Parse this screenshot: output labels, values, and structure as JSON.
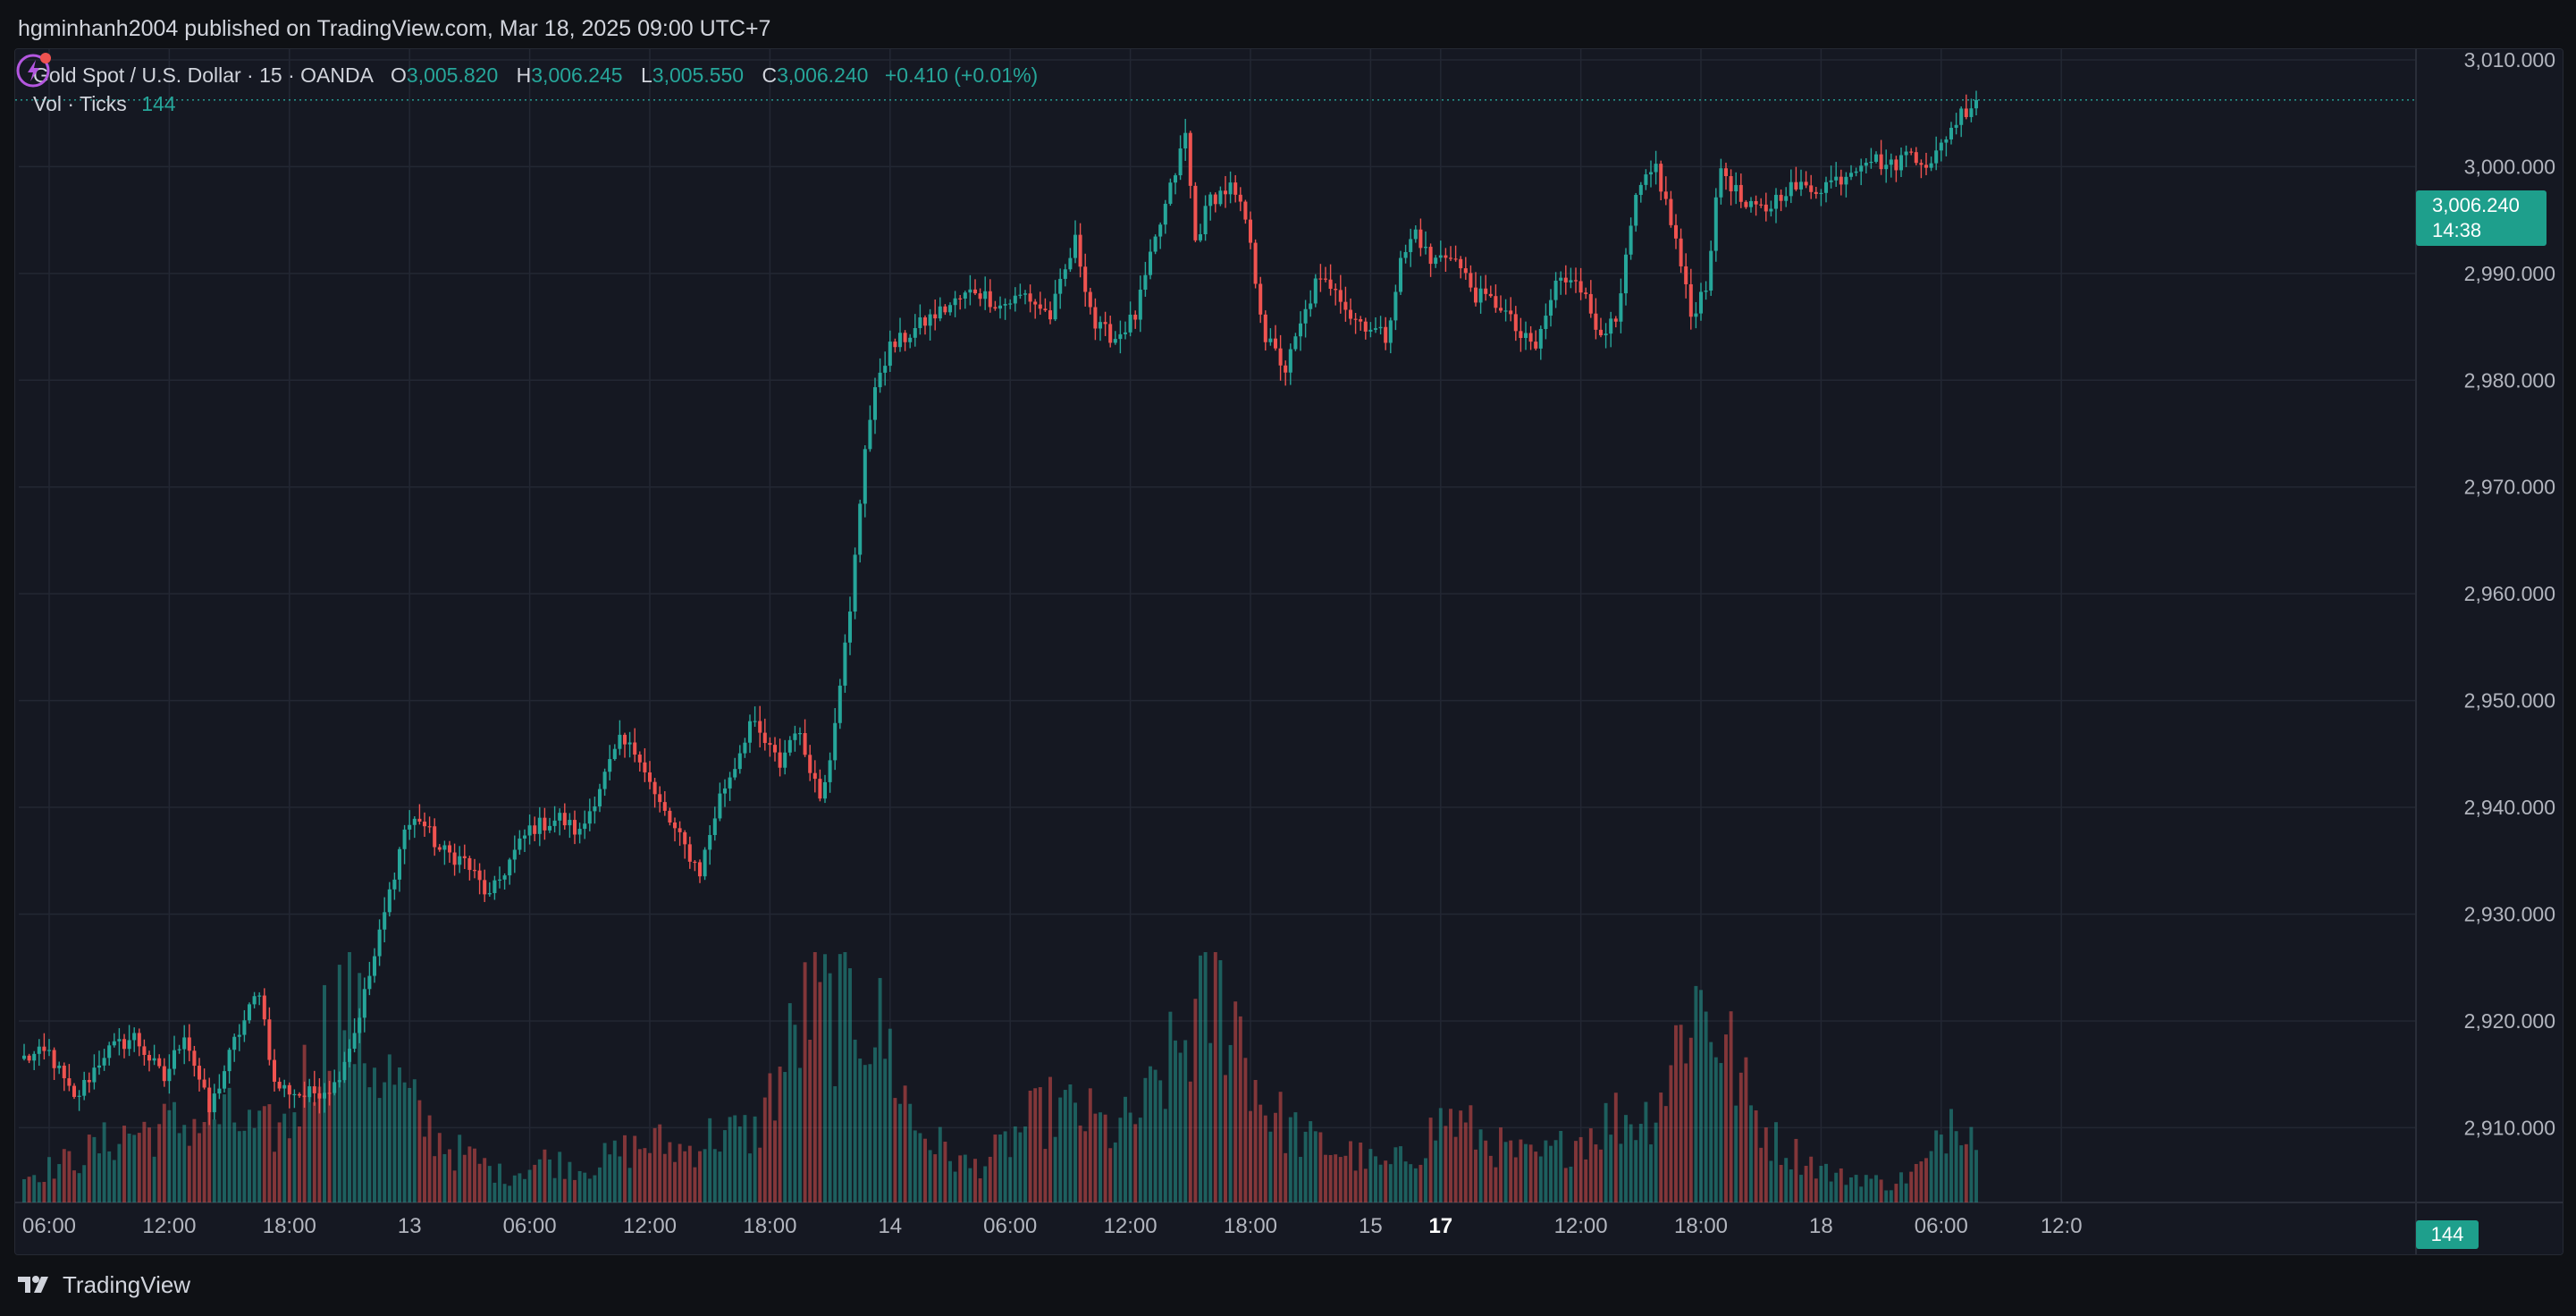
{
  "header": {
    "published_text": "hgminhanh2004 published on TradingView.com, Mar 18, 2025 09:00 UTC+7"
  },
  "legend": {
    "symbol_text": "Gold Spot / U.S. Dollar · 15 · OANDA",
    "o_key": "O",
    "o_val": "3,005.820",
    "h_key": "H",
    "h_val": "3,006.245",
    "l_key": "L",
    "l_val": "3,005.550",
    "c_key": "C",
    "c_val": "3,006.240",
    "change": "+0.410 (+0.01%)",
    "vol_label": "Vol · Ticks",
    "vol_val": "144"
  },
  "last_price": {
    "price": "3,006.240",
    "countdown": "14:38"
  },
  "last_volume": "144",
  "footer": {
    "brand": "TradingView"
  },
  "icons": {
    "logo": "tradingview-logo-icon",
    "alert": "lightning-alert-icon"
  },
  "colors": {
    "up": "#26a69a",
    "down": "#ef5350",
    "background": "#151822",
    "grid": "#252a36"
  },
  "chart_data": {
    "type": "candlestick",
    "title": "Gold Spot / U.S. Dollar · 15 · OANDA",
    "ylim": [
      2903,
      3011
    ],
    "y_ticks": [
      "3,010.000",
      "3,000.000",
      "2,990.000",
      "2,980.000",
      "2,970.000",
      "2,960.000",
      "2,950.000",
      "2,940.000",
      "2,930.000",
      "2,920.000",
      "2,910.000"
    ],
    "y_tick_values": [
      3010,
      3000,
      2990,
      2980,
      2970,
      2960,
      2950,
      2940,
      2930,
      2920,
      2910
    ],
    "x_ticks": [
      {
        "label": "06:00",
        "bar": 5,
        "bold": false
      },
      {
        "label": "12:00",
        "bar": 29,
        "bold": false
      },
      {
        "label": "18:00",
        "bar": 53,
        "bold": false
      },
      {
        "label": "13",
        "bar": 77,
        "bold": false
      },
      {
        "label": "06:00",
        "bar": 101,
        "bold": false
      },
      {
        "label": "12:00",
        "bar": 125,
        "bold": false
      },
      {
        "label": "18:00",
        "bar": 149,
        "bold": false
      },
      {
        "label": "14",
        "bar": 173,
        "bold": false
      },
      {
        "label": "06:00",
        "bar": 197,
        "bold": false
      },
      {
        "label": "12:00",
        "bar": 221,
        "bold": false
      },
      {
        "label": "18:00",
        "bar": 245,
        "bold": false
      },
      {
        "label": "15",
        "bar": 269,
        "bold": false
      },
      {
        "label": "17",
        "bar": 283,
        "bold": true
      },
      {
        "label": "12:00",
        "bar": 311,
        "bold": false
      },
      {
        "label": "18:00",
        "bar": 335,
        "bold": false
      },
      {
        "label": "18",
        "bar": 359,
        "bold": false
      },
      {
        "label": "06:00",
        "bar": 383,
        "bold": false
      },
      {
        "label": "12:0",
        "bar": 407,
        "bold": false
      }
    ],
    "close_anchors": [
      [
        0,
        2916.5
      ],
      [
        5,
        2917
      ],
      [
        10,
        2912.5
      ],
      [
        16,
        2917
      ],
      [
        22,
        2918.5
      ],
      [
        28,
        2914.5
      ],
      [
        32,
        2919
      ],
      [
        37,
        2911.5
      ],
      [
        42,
        2918
      ],
      [
        47,
        2923
      ],
      [
        50,
        2914
      ],
      [
        56,
        2913
      ],
      [
        62,
        2914
      ],
      [
        66,
        2919
      ],
      [
        70,
        2926
      ],
      [
        73,
        2932
      ],
      [
        76,
        2938
      ],
      [
        79,
        2939
      ],
      [
        83,
        2936
      ],
      [
        88,
        2935
      ],
      [
        93,
        2931.5
      ],
      [
        97,
        2935
      ],
      [
        101,
        2938
      ],
      [
        107,
        2939
      ],
      [
        111,
        2937.5
      ],
      [
        115,
        2942
      ],
      [
        119,
        2946
      ],
      [
        123,
        2945
      ],
      [
        126,
        2941
      ],
      [
        131,
        2937
      ],
      [
        135,
        2934
      ],
      [
        139,
        2941
      ],
      [
        142,
        2944
      ],
      [
        145,
        2948
      ],
      [
        148,
        2946
      ],
      [
        151,
        2944
      ],
      [
        154,
        2947.5
      ],
      [
        157,
        2944
      ],
      [
        159,
        2941
      ],
      [
        161,
        2945
      ],
      [
        163,
        2952
      ],
      [
        165,
        2958
      ],
      [
        168,
        2974
      ],
      [
        171,
        2981
      ],
      [
        173,
        2983
      ],
      [
        176,
        2984
      ],
      [
        180,
        2985.5
      ],
      [
        185,
        2987
      ],
      [
        190,
        2988.5
      ],
      [
        195,
        2987
      ],
      [
        200,
        2988
      ],
      [
        205,
        2986
      ],
      [
        210,
        2993
      ],
      [
        214,
        2985
      ],
      [
        218,
        2984
      ],
      [
        222,
        2986
      ],
      [
        226,
        2993
      ],
      [
        230,
        2999.5
      ],
      [
        232,
        3003
      ],
      [
        234,
        2993
      ],
      [
        237,
        2997
      ],
      [
        241,
        2998
      ],
      [
        244,
        2995
      ],
      [
        248,
        2984
      ],
      [
        252,
        2981
      ],
      [
        255,
        2985
      ],
      [
        258,
        2989
      ],
      [
        262,
        2989
      ],
      [
        265,
        2986
      ],
      [
        269,
        2985
      ],
      [
        272,
        2984
      ],
      [
        275,
        2991
      ],
      [
        278,
        2994
      ],
      [
        281,
        2991
      ],
      [
        285,
        2992
      ],
      [
        290,
        2988
      ],
      [
        295,
        2987
      ],
      [
        299,
        2984
      ],
      [
        302,
        2983
      ],
      [
        306,
        2989
      ],
      [
        310,
        2990
      ],
      [
        314,
        2985
      ],
      [
        318,
        2985
      ],
      [
        322,
        2997
      ],
      [
        326,
        3000
      ],
      [
        330,
        2993
      ],
      [
        333,
        2986
      ],
      [
        336,
        2989
      ],
      [
        339,
        3000
      ],
      [
        344,
        2996
      ],
      [
        348,
        2996
      ],
      [
        352,
        2998
      ],
      [
        358,
        2998
      ],
      [
        363,
        2999
      ],
      [
        368,
        3001
      ],
      [
        373,
        3000
      ],
      [
        377,
        3001.5
      ],
      [
        381,
        3000
      ],
      [
        384,
        3003
      ],
      [
        387,
        3005
      ],
      [
        390,
        3006.24
      ]
    ],
    "volume_points": [
      [
        0,
        3
      ],
      [
        10,
        5
      ],
      [
        20,
        8
      ],
      [
        30,
        9
      ],
      [
        40,
        10
      ],
      [
        47,
        8
      ],
      [
        53,
        9
      ],
      [
        58,
        18
      ],
      [
        64,
        24
      ],
      [
        68,
        18
      ],
      [
        74,
        14
      ],
      [
        80,
        9
      ],
      [
        86,
        6
      ],
      [
        90,
        5
      ],
      [
        96,
        3
      ],
      [
        104,
        5
      ],
      [
        112,
        4
      ],
      [
        120,
        6
      ],
      [
        126,
        7
      ],
      [
        132,
        6
      ],
      [
        138,
        8
      ],
      [
        146,
        8
      ],
      [
        151,
        15
      ],
      [
        157,
        23
      ],
      [
        163,
        22
      ],
      [
        167,
        23
      ],
      [
        172,
        19
      ],
      [
        178,
        9
      ],
      [
        184,
        6
      ],
      [
        189,
        4
      ],
      [
        195,
        6
      ],
      [
        200,
        9
      ],
      [
        206,
        11
      ],
      [
        212,
        10
      ],
      [
        218,
        8
      ],
      [
        224,
        11
      ],
      [
        229,
        16
      ],
      [
        233,
        20
      ],
      [
        238,
        24
      ],
      [
        242,
        22
      ],
      [
        247,
        12
      ],
      [
        252,
        9
      ],
      [
        257,
        7
      ],
      [
        263,
        6
      ],
      [
        268,
        5
      ],
      [
        272,
        4
      ],
      [
        278,
        6
      ],
      [
        284,
        10
      ],
      [
        290,
        8
      ],
      [
        296,
        6
      ],
      [
        302,
        5
      ],
      [
        306,
        6
      ],
      [
        312,
        8
      ],
      [
        318,
        10
      ],
      [
        324,
        10
      ],
      [
        328,
        14
      ],
      [
        333,
        24
      ],
      [
        337,
        22
      ],
      [
        341,
        17
      ],
      [
        345,
        11
      ],
      [
        350,
        7
      ],
      [
        356,
        5
      ],
      [
        362,
        3
      ],
      [
        368,
        3
      ],
      [
        372,
        2
      ],
      [
        376,
        3
      ],
      [
        381,
        5
      ],
      [
        386,
        12
      ],
      [
        390,
        8
      ]
    ],
    "volume_max": 27,
    "last": {
      "value": 3006.24,
      "countdown": "14:38",
      "volume": 144
    }
  }
}
